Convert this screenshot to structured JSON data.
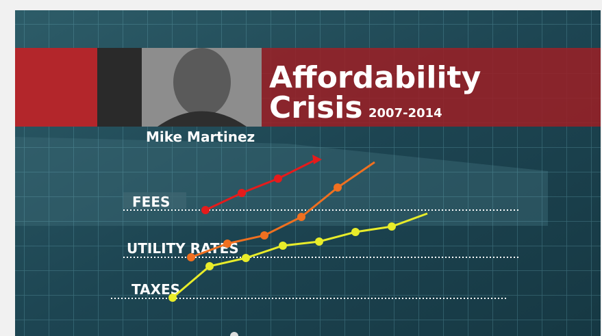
{
  "banner": {
    "title_line1": "Affordability",
    "title_line2": "Crisis",
    "years": "2007-2014",
    "speaker": "Mike Martinez"
  },
  "graphic": {
    "labels": [
      "FEES",
      "UTILITY RATES",
      "TAXES"
    ]
  }
}
